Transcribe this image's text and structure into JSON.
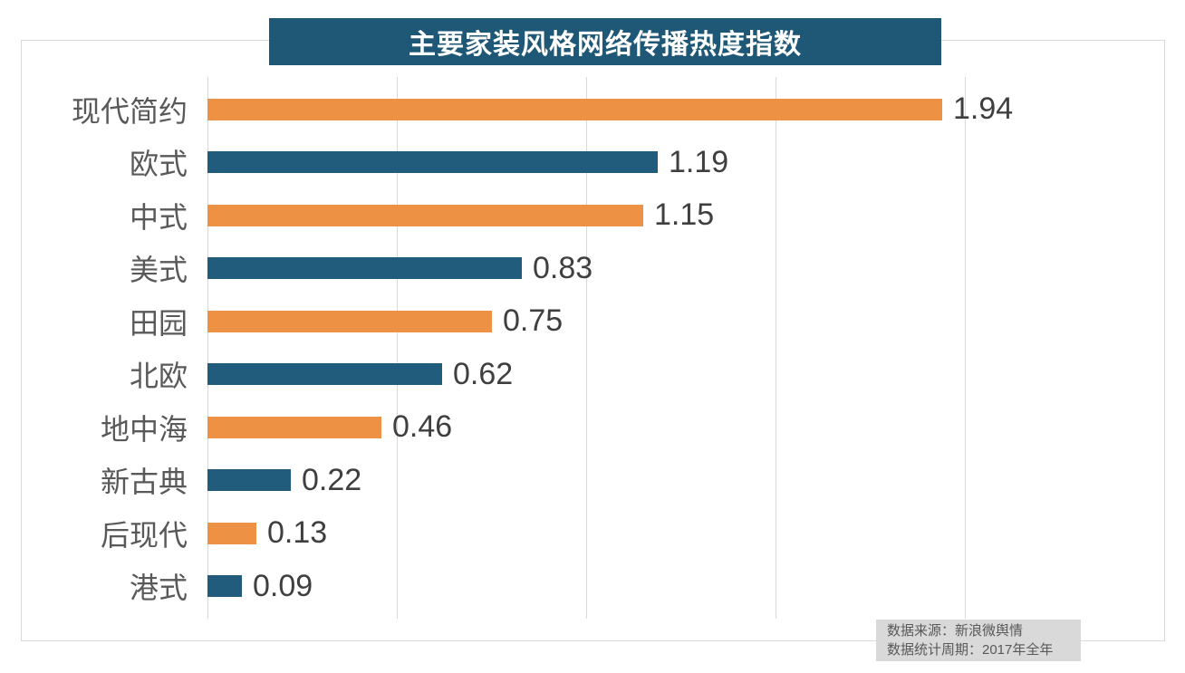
{
  "title": "主要家装风格网络传播热度指数",
  "source": {
    "line1": "数据来源：新浪微舆情",
    "line2": "数据统计周期：2017年全年"
  },
  "colors": {
    "banner_bg": "#1f5876",
    "bar_orange": "#ed9144",
    "bar_teal": "#215c7d",
    "grid": "#d9d9d9",
    "category_label": "#595959",
    "value_label": "#3f3f3f",
    "source_bg": "#d9d9d9",
    "source_text": "#595959"
  },
  "chart_data": {
    "type": "bar",
    "orientation": "horizontal",
    "title": "主要家装风格网络传播热度指数",
    "categories": [
      "现代简约",
      "欧式",
      "中式",
      "美式",
      "田园",
      "北欧",
      "地中海",
      "新古典",
      "后现代",
      "港式"
    ],
    "values": [
      1.94,
      1.19,
      1.15,
      0.83,
      0.75,
      0.62,
      0.46,
      0.22,
      0.13,
      0.09
    ],
    "value_labels": [
      "1.94",
      "1.19",
      "1.15",
      "0.83",
      "0.75",
      "0.62",
      "0.46",
      "0.22",
      "0.13",
      "0.09"
    ],
    "bar_color_pattern": [
      "#ed9144",
      "#215c7d"
    ],
    "xlabel": "",
    "ylabel": "",
    "xlim": [
      0,
      2.5
    ],
    "gridline_interval": 0.5,
    "grid": true,
    "legend": false,
    "annotations": [
      "数据来源：新浪微舆情",
      "数据统计周期：2017年全年"
    ]
  }
}
